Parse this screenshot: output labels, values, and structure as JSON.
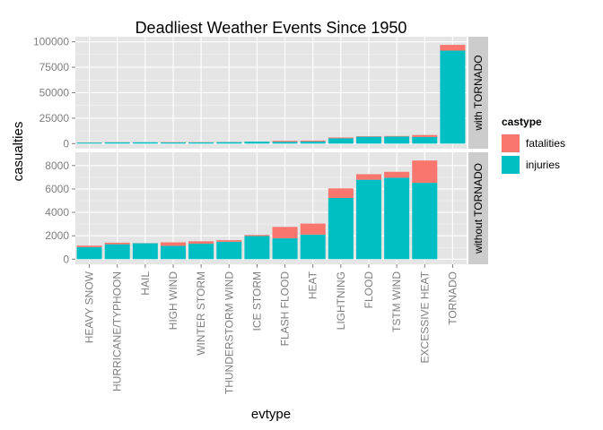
{
  "chart_data": {
    "type": "bar",
    "stacked": true,
    "faceted": true,
    "title": "Deadliest Weather Events Since 1950",
    "xlabel": "evtype",
    "ylabel": "casualties",
    "categories": [
      "HEAVY SNOW",
      "HURRICANE/TYPHOON",
      "HAIL",
      "HIGH WIND",
      "WINTER STORM",
      "THUNDERSTORM WIND",
      "ICE STORM",
      "FLASH FLOOD",
      "HEAT",
      "LIGHTNING",
      "FLOOD",
      "TSTM WIND",
      "EXCESSIVE HEAT",
      "TORNADO"
    ],
    "legend": {
      "title": "castype",
      "position": "right",
      "entries": [
        {
          "name": "fatalities",
          "color": "#F8766D"
        },
        {
          "name": "injuries",
          "color": "#00BFC4"
        }
      ]
    },
    "panels": [
      {
        "strip": "with TORNADO",
        "ylim": [
          0,
          100000
        ],
        "yticks": [
          0,
          25000,
          50000,
          75000,
          100000
        ],
        "ytick_labels": [
          "0",
          "25000",
          "50000",
          "75000",
          "100000"
        ],
        "series": [
          {
            "name": "injuries",
            "values": [
              1030,
              1275,
              1360,
              1140,
              1320,
              1490,
              1975,
              1780,
              2100,
              5230,
              6790,
              6960,
              6525,
              91350
            ]
          },
          {
            "name": "fatalities",
            "values": [
              130,
              135,
              15,
              300,
              210,
              135,
              90,
              980,
              940,
              820,
              470,
              505,
              1905,
              5630
            ]
          }
        ]
      },
      {
        "strip": "without TORNADO",
        "ylim": [
          0,
          8700
        ],
        "yticks": [
          0,
          2000,
          4000,
          6000,
          8000
        ],
        "ytick_labels": [
          "0",
          "2000",
          "4000",
          "6000",
          "8000"
        ],
        "series": [
          {
            "name": "injuries",
            "values": [
              1030,
              1275,
              1360,
              1140,
              1320,
              1490,
              1975,
              1780,
              2100,
              5230,
              6790,
              6960,
              6525,
              0
            ]
          },
          {
            "name": "fatalities",
            "values": [
              130,
              135,
              15,
              300,
              210,
              135,
              90,
              980,
              940,
              820,
              470,
              505,
              1905,
              0
            ]
          }
        ]
      }
    ],
    "grid": true
  }
}
